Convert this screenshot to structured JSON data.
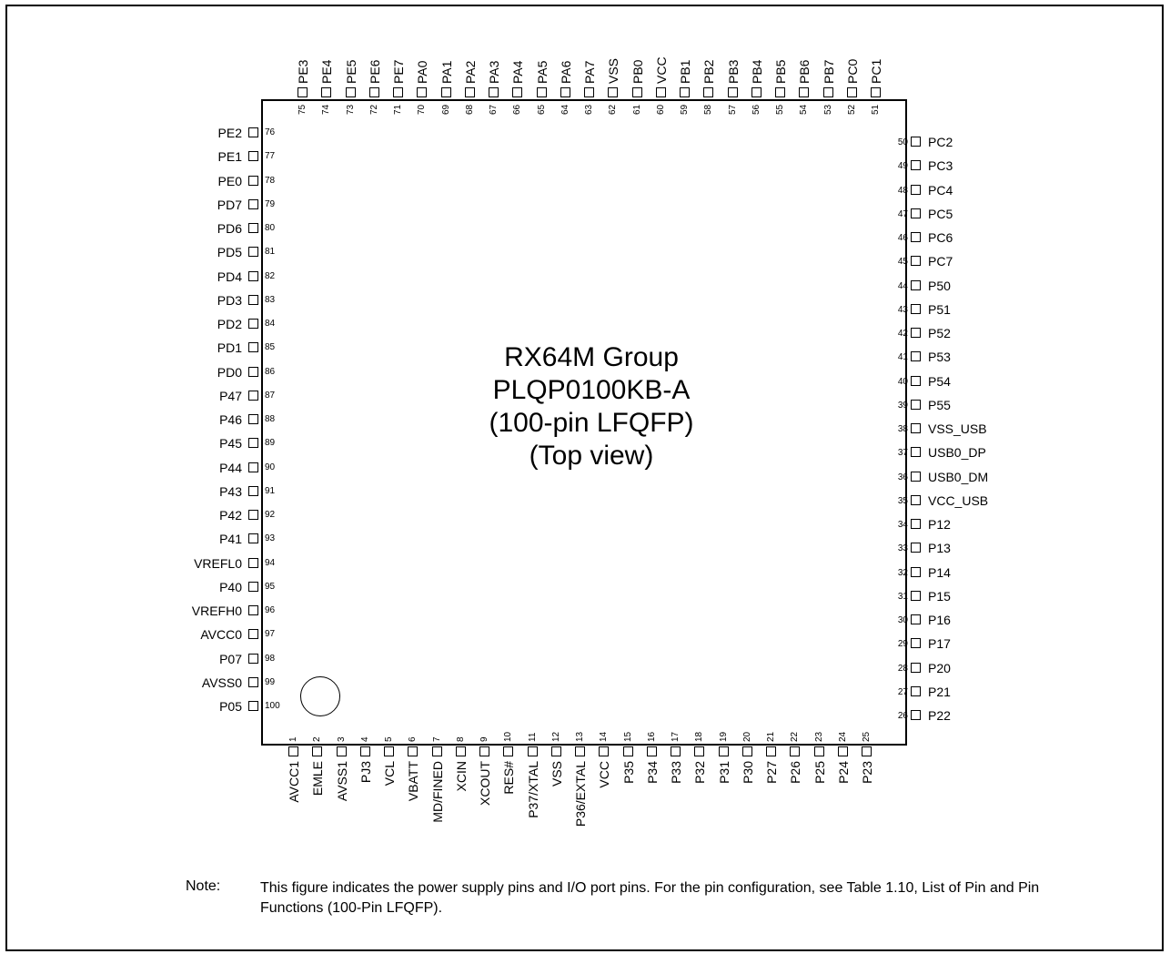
{
  "title_lines": [
    "RX64M Group",
    "PLQP0100KB-A",
    "(100-pin LFQFP)",
    "(Top view)"
  ],
  "pins": {
    "bottom": [
      {
        "num": "1",
        "name": "AVCC1"
      },
      {
        "num": "2",
        "name": "EMLE"
      },
      {
        "num": "3",
        "name": "AVSS1"
      },
      {
        "num": "4",
        "name": "PJ3"
      },
      {
        "num": "5",
        "name": "VCL"
      },
      {
        "num": "6",
        "name": "VBATT"
      },
      {
        "num": "7",
        "name": "MD/FINED"
      },
      {
        "num": "8",
        "name": "XCIN"
      },
      {
        "num": "9",
        "name": "XCOUT"
      },
      {
        "num": "10",
        "name": "RES#"
      },
      {
        "num": "11",
        "name": "P37/XTAL"
      },
      {
        "num": "12",
        "name": "VSS"
      },
      {
        "num": "13",
        "name": "P36/EXTAL"
      },
      {
        "num": "14",
        "name": "VCC"
      },
      {
        "num": "15",
        "name": "P35"
      },
      {
        "num": "16",
        "name": "P34"
      },
      {
        "num": "17",
        "name": "P33"
      },
      {
        "num": "18",
        "name": "P32"
      },
      {
        "num": "19",
        "name": "P31"
      },
      {
        "num": "20",
        "name": "P30"
      },
      {
        "num": "21",
        "name": "P27"
      },
      {
        "num": "22",
        "name": "P26"
      },
      {
        "num": "23",
        "name": "P25"
      },
      {
        "num": "24",
        "name": "P24"
      },
      {
        "num": "25",
        "name": "P23"
      }
    ],
    "right": [
      {
        "num": "26",
        "name": "P22"
      },
      {
        "num": "27",
        "name": "P21"
      },
      {
        "num": "28",
        "name": "P20"
      },
      {
        "num": "29",
        "name": "P17"
      },
      {
        "num": "30",
        "name": "P16"
      },
      {
        "num": "31",
        "name": "P15"
      },
      {
        "num": "32",
        "name": "P14"
      },
      {
        "num": "33",
        "name": "P13"
      },
      {
        "num": "34",
        "name": "P12"
      },
      {
        "num": "35",
        "name": "VCC_USB"
      },
      {
        "num": "36",
        "name": "USB0_DM"
      },
      {
        "num": "37",
        "name": "USB0_DP"
      },
      {
        "num": "38",
        "name": "VSS_USB"
      },
      {
        "num": "39",
        "name": "P55"
      },
      {
        "num": "40",
        "name": "P54"
      },
      {
        "num": "41",
        "name": "P53"
      },
      {
        "num": "42",
        "name": "P52"
      },
      {
        "num": "43",
        "name": "P51"
      },
      {
        "num": "44",
        "name": "P50"
      },
      {
        "num": "45",
        "name": "PC7"
      },
      {
        "num": "46",
        "name": "PC6"
      },
      {
        "num": "47",
        "name": "PC5"
      },
      {
        "num": "48",
        "name": "PC4"
      },
      {
        "num": "49",
        "name": "PC3"
      },
      {
        "num": "50",
        "name": "PC2"
      }
    ],
    "top": [
      {
        "num": "51",
        "name": "PC1"
      },
      {
        "num": "52",
        "name": "PC0"
      },
      {
        "num": "53",
        "name": "PB7"
      },
      {
        "num": "54",
        "name": "PB6"
      },
      {
        "num": "55",
        "name": "PB5"
      },
      {
        "num": "56",
        "name": "PB4"
      },
      {
        "num": "57",
        "name": "PB3"
      },
      {
        "num": "58",
        "name": "PB2"
      },
      {
        "num": "59",
        "name": "PB1"
      },
      {
        "num": "60",
        "name": "VCC"
      },
      {
        "num": "61",
        "name": "PB0"
      },
      {
        "num": "62",
        "name": "VSS"
      },
      {
        "num": "63",
        "name": "PA7"
      },
      {
        "num": "64",
        "name": "PA6"
      },
      {
        "num": "65",
        "name": "PA5"
      },
      {
        "num": "66",
        "name": "PA4"
      },
      {
        "num": "67",
        "name": "PA3"
      },
      {
        "num": "68",
        "name": "PA2"
      },
      {
        "num": "69",
        "name": "PA1"
      },
      {
        "num": "70",
        "name": "PA0"
      },
      {
        "num": "71",
        "name": "PE7"
      },
      {
        "num": "72",
        "name": "PE6"
      },
      {
        "num": "73",
        "name": "PE5"
      },
      {
        "num": "74",
        "name": "PE4"
      },
      {
        "num": "75",
        "name": "PE3"
      }
    ],
    "left": [
      {
        "num": "76",
        "name": "PE2"
      },
      {
        "num": "77",
        "name": "PE1"
      },
      {
        "num": "78",
        "name": "PE0"
      },
      {
        "num": "79",
        "name": "PD7"
      },
      {
        "num": "80",
        "name": "PD6"
      },
      {
        "num": "81",
        "name": "PD5"
      },
      {
        "num": "82",
        "name": "PD4"
      },
      {
        "num": "83",
        "name": "PD3"
      },
      {
        "num": "84",
        "name": "PD2"
      },
      {
        "num": "85",
        "name": "PD1"
      },
      {
        "num": "86",
        "name": "PD0"
      },
      {
        "num": "87",
        "name": "P47"
      },
      {
        "num": "88",
        "name": "P46"
      },
      {
        "num": "89",
        "name": "P45"
      },
      {
        "num": "90",
        "name": "P44"
      },
      {
        "num": "91",
        "name": "P43"
      },
      {
        "num": "92",
        "name": "P42"
      },
      {
        "num": "93",
        "name": "P41"
      },
      {
        "num": "94",
        "name": "VREFL0"
      },
      {
        "num": "95",
        "name": "P40"
      },
      {
        "num": "96",
        "name": "VREFH0"
      },
      {
        "num": "97",
        "name": "AVCC0"
      },
      {
        "num": "98",
        "name": "P07"
      },
      {
        "num": "99",
        "name": "AVSS0"
      },
      {
        "num": "100",
        "name": "P05"
      }
    ]
  },
  "note": {
    "label": "Note:",
    "text": "This figure indicates the power supply pins and I/O port pins. For the pin configuration, see Table 1.10, List of Pin and Pin Functions (100-Pin LFQFP)."
  }
}
